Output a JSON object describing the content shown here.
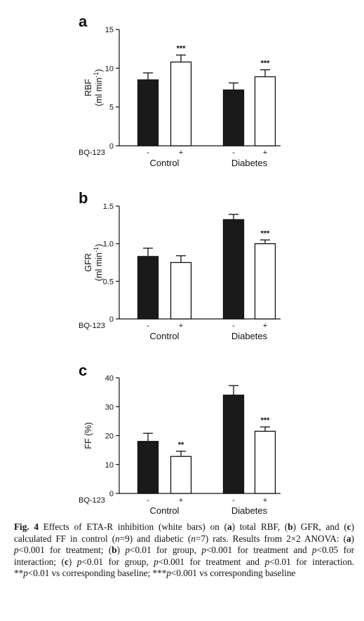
{
  "figure": {
    "caption_parts": [
      {
        "t": "Fig. 4",
        "b": true
      },
      {
        "t": "  Effects of ETA-R inhibition (white bars) on ("
      },
      {
        "t": "a",
        "b": true
      },
      {
        "t": ") total RBF, ("
      },
      {
        "t": "b",
        "b": true
      },
      {
        "t": ") GFR, and ("
      },
      {
        "t": "c",
        "b": true
      },
      {
        "t": ") calculated FF in control ("
      },
      {
        "t": "n",
        "i": true
      },
      {
        "t": "=9) and diabetic ("
      },
      {
        "t": "n",
        "i": true
      },
      {
        "t": "=7) rats. Results from 2×2 ANOVA: ("
      },
      {
        "t": "a",
        "b": true
      },
      {
        "t": ") "
      },
      {
        "t": "p",
        "i": true
      },
      {
        "t": "<0.001 for treatment; ("
      },
      {
        "t": "b",
        "b": true
      },
      {
        "t": ") "
      },
      {
        "t": "p",
        "i": true
      },
      {
        "t": "<0.01 for group, "
      },
      {
        "t": "p",
        "i": true
      },
      {
        "t": "<0.001 for treatment and "
      },
      {
        "t": "p",
        "i": true
      },
      {
        "t": "<0.05 for interaction; ("
      },
      {
        "t": "c",
        "b": true
      },
      {
        "t": ") "
      },
      {
        "t": "p",
        "i": true
      },
      {
        "t": "<0.01 for group, "
      },
      {
        "t": "p",
        "i": true
      },
      {
        "t": "<0.001 for treatment and "
      },
      {
        "t": "p",
        "i": true
      },
      {
        "t": "<0.01 for interaction. **"
      },
      {
        "t": "p",
        "i": true
      },
      {
        "t": "<0.01 vs corresponding baseline; ***"
      },
      {
        "t": "p",
        "i": true
      },
      {
        "t": "<0.001 vs corresponding baseline"
      }
    ]
  },
  "colors": {
    "baseline_bar": "#1a1a1a",
    "treated_bar": "#ffffff",
    "stroke": "#111111"
  },
  "chart_data": [
    {
      "type": "bar",
      "panel": "a",
      "ylabel": "RBF",
      "yunit": "(ml min",
      "yunit_sup": "-1",
      "ylim": [
        0,
        15
      ],
      "yticks": [
        0,
        5,
        10,
        15
      ],
      "ytick_labels": [
        "0",
        "5",
        "10",
        "15"
      ],
      "treatment_label": "BQ-123",
      "treatment_levels": [
        "-",
        "+"
      ],
      "groups": [
        "Control",
        "Diabetes"
      ],
      "series": [
        {
          "level": "-",
          "values": [
            8.5,
            7.2
          ],
          "errors": [
            0.9,
            0.9
          ],
          "sig": [
            "",
            ""
          ]
        },
        {
          "level": "+",
          "values": [
            10.8,
            8.9
          ],
          "errors": [
            0.9,
            0.9
          ],
          "sig": [
            "***",
            "***"
          ]
        }
      ]
    },
    {
      "type": "bar",
      "panel": "b",
      "ylabel": "GFR",
      "yunit": "(ml min",
      "yunit_sup": "-1",
      "ylim": [
        0,
        1.5
      ],
      "yticks": [
        0,
        0.5,
        1.0,
        1.5
      ],
      "ytick_labels": [
        "0",
        "0.5",
        "1.0",
        "1.5"
      ],
      "treatment_label": "BQ-123",
      "treatment_levels": [
        "-",
        "+"
      ],
      "groups": [
        "Control",
        "Diabetes"
      ],
      "series": [
        {
          "level": "-",
          "values": [
            0.83,
            1.32
          ],
          "errors": [
            0.11,
            0.07
          ],
          "sig": [
            "",
            ""
          ]
        },
        {
          "level": "+",
          "values": [
            0.75,
            1.0
          ],
          "errors": [
            0.09,
            0.05
          ],
          "sig": [
            "",
            "***"
          ]
        }
      ]
    },
    {
      "type": "bar",
      "panel": "c",
      "ylabel": "FF (%)",
      "yunit": "",
      "yunit_sup": "",
      "ylim": [
        0,
        40
      ],
      "yticks": [
        0,
        10,
        20,
        30,
        40
      ],
      "ytick_labels": [
        "0",
        "10",
        "20",
        "30",
        "40"
      ],
      "treatment_label": "BQ-123",
      "treatment_levels": [
        "-",
        "+"
      ],
      "groups": [
        "Control",
        "Diabetes"
      ],
      "series": [
        {
          "level": "-",
          "values": [
            18.0,
            34.0
          ],
          "errors": [
            2.8,
            3.3
          ],
          "sig": [
            "",
            ""
          ]
        },
        {
          "level": "+",
          "values": [
            12.8,
            21.5
          ],
          "errors": [
            1.8,
            1.5
          ],
          "sig": [
            "**",
            "***"
          ]
        }
      ]
    }
  ]
}
